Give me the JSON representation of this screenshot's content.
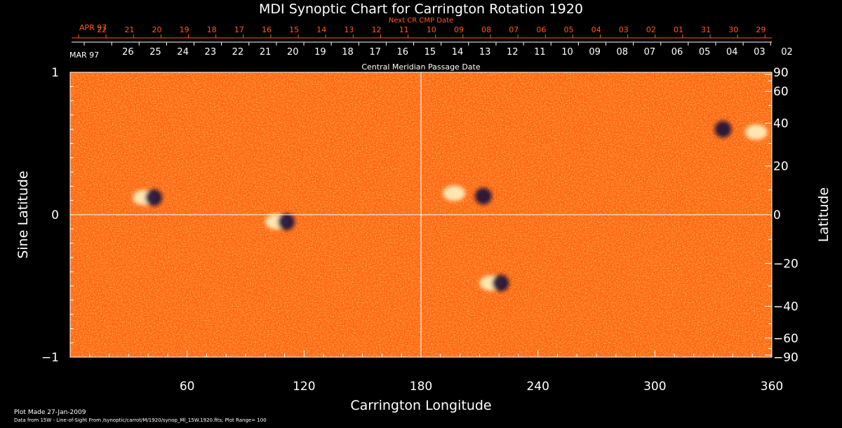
{
  "chart_data": {
    "type": "heatmap",
    "title": "MDI Synoptic Chart for Carrington Rotation 1920",
    "xlabel": "Carrington Longitude",
    "ylabel_left": "Sine Latitude",
    "ylabel_right": "Latitude",
    "xlim": [
      0,
      360
    ],
    "ylim_sine": [
      -1,
      1
    ],
    "x_ticks": [
      "60",
      "120",
      "180",
      "240",
      "300",
      "360"
    ],
    "x_tick_values": [
      60,
      120,
      180,
      240,
      300,
      360
    ],
    "left_ticks": [
      "1",
      "0",
      "−1"
    ],
    "left_tick_values": [
      1,
      0,
      -1
    ],
    "right_ticks": [
      "90",
      "60",
      "40",
      "20",
      "0",
      "−20",
      "−40",
      "−60",
      "−90"
    ],
    "right_tick_values": [
      90,
      60,
      40,
      20,
      0,
      -20,
      -40,
      -60,
      -90
    ],
    "top_axis_label": "Next CR CMP Date",
    "top_month": "APR 97",
    "top_dates": [
      "22",
      "21",
      "20",
      "19",
      "18",
      "17",
      "16",
      "15",
      "14",
      "13",
      "12",
      "11",
      "10",
      "09",
      "08",
      "07",
      "06",
      "05",
      "04",
      "03",
      "02",
      "01",
      "31",
      "30",
      "29"
    ],
    "bottom_axis_label": "Central Meridian Passage Date",
    "bottom_month": "MAR 97",
    "bottom_dates": [
      "26",
      "25",
      "24",
      "23",
      "22",
      "21",
      "20",
      "19",
      "18",
      "17",
      "16",
      "15",
      "14",
      "13",
      "12",
      "11",
      "10",
      "09",
      "08",
      "07",
      "06",
      "05",
      "04",
      "03",
      "02"
    ],
    "reference_lines": {
      "longitude": 180,
      "sine_latitude": 0
    },
    "active_regions": [
      {
        "lon": 40,
        "sinlat": 0.12,
        "polarity": "mixed"
      },
      {
        "lon": 197,
        "sinlat": 0.15,
        "polarity": "positive"
      },
      {
        "lon": 212,
        "sinlat": 0.13,
        "polarity": "negative"
      },
      {
        "lon": 218,
        "sinlat": -0.48,
        "polarity": "mixed"
      },
      {
        "lon": 335,
        "sinlat": 0.6,
        "polarity": "negative"
      },
      {
        "lon": 352,
        "sinlat": 0.58,
        "polarity": "positive"
      },
      {
        "lon": 108,
        "sinlat": -0.05,
        "polarity": "mixed"
      }
    ],
    "colors": {
      "background_field": "#ff6a10",
      "positive": "#fff2c0",
      "negative": "#1a0a3a",
      "axes": "#ffffff",
      "date_scale": "#ff5a1a"
    }
  },
  "footer": {
    "plot_made": "Plot Made 27-Jan-2009",
    "data_from": "Data from 15W - Line-of-Sight From /synoptic/carrot/M/1920/synop_Ml_15W.1920.fits; Plot Range=  100"
  }
}
